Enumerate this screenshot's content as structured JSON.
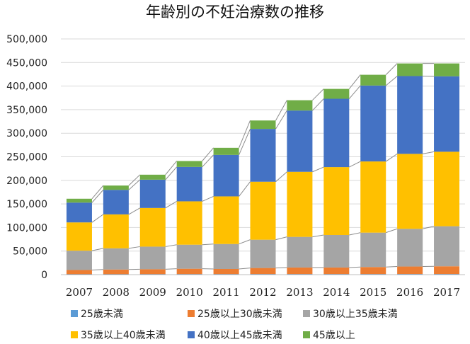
{
  "chart_data": {
    "type": "bar",
    "stacked": true,
    "title": "年齢別の不妊治療数の推移",
    "xlabel": "",
    "ylabel": "",
    "categories": [
      "2007",
      "2008",
      "2009",
      "2010",
      "2011",
      "2012",
      "2013",
      "2014",
      "2015",
      "2016",
      "2017"
    ],
    "ylim": [
      0,
      500000
    ],
    "yticks": [
      "0",
      "50,000",
      "100,000",
      "150,000",
      "200,000",
      "250,000",
      "300,000",
      "350,000",
      "400,000",
      "450,000",
      "500,000"
    ],
    "grid": true,
    "legend_position": "bottom",
    "connector_lines": true,
    "series": [
      {
        "name": "25歳未満",
        "color": "#5b9bd5",
        "values": [
          800,
          800,
          900,
          1000,
          1000,
          1100,
          1100,
          1100,
          1100,
          1200,
          1200
        ]
      },
      {
        "name": "25歳以上30歳未満",
        "color": "#ed7d31",
        "values": [
          9000,
          10000,
          10500,
          11500,
          11000,
          13000,
          14000,
          14000,
          15000,
          16000,
          16500
        ]
      },
      {
        "name": "30歳以上35歳未満",
        "color": "#a5a5a5",
        "values": [
          41000,
          45000,
          48000,
          51000,
          53000,
          60000,
          65000,
          69000,
          73000,
          80000,
          85000
        ]
      },
      {
        "name": "35歳以上40歳未満",
        "color": "#ffc000",
        "values": [
          60000,
          72000,
          82000,
          92000,
          101000,
          123000,
          138000,
          144000,
          151000,
          159000,
          158000
        ]
      },
      {
        "name": "40歳以上45歳未満",
        "color": "#4472c4",
        "values": [
          42000,
          52000,
          60000,
          73000,
          88000,
          112000,
          130000,
          145000,
          161000,
          165000,
          160000
        ]
      },
      {
        "name": "45歳以上",
        "color": "#70ad47",
        "values": [
          8200,
          9200,
          10600,
          12500,
          15000,
          17900,
          21900,
          20900,
          22900,
          26800,
          27300
        ]
      }
    ]
  }
}
